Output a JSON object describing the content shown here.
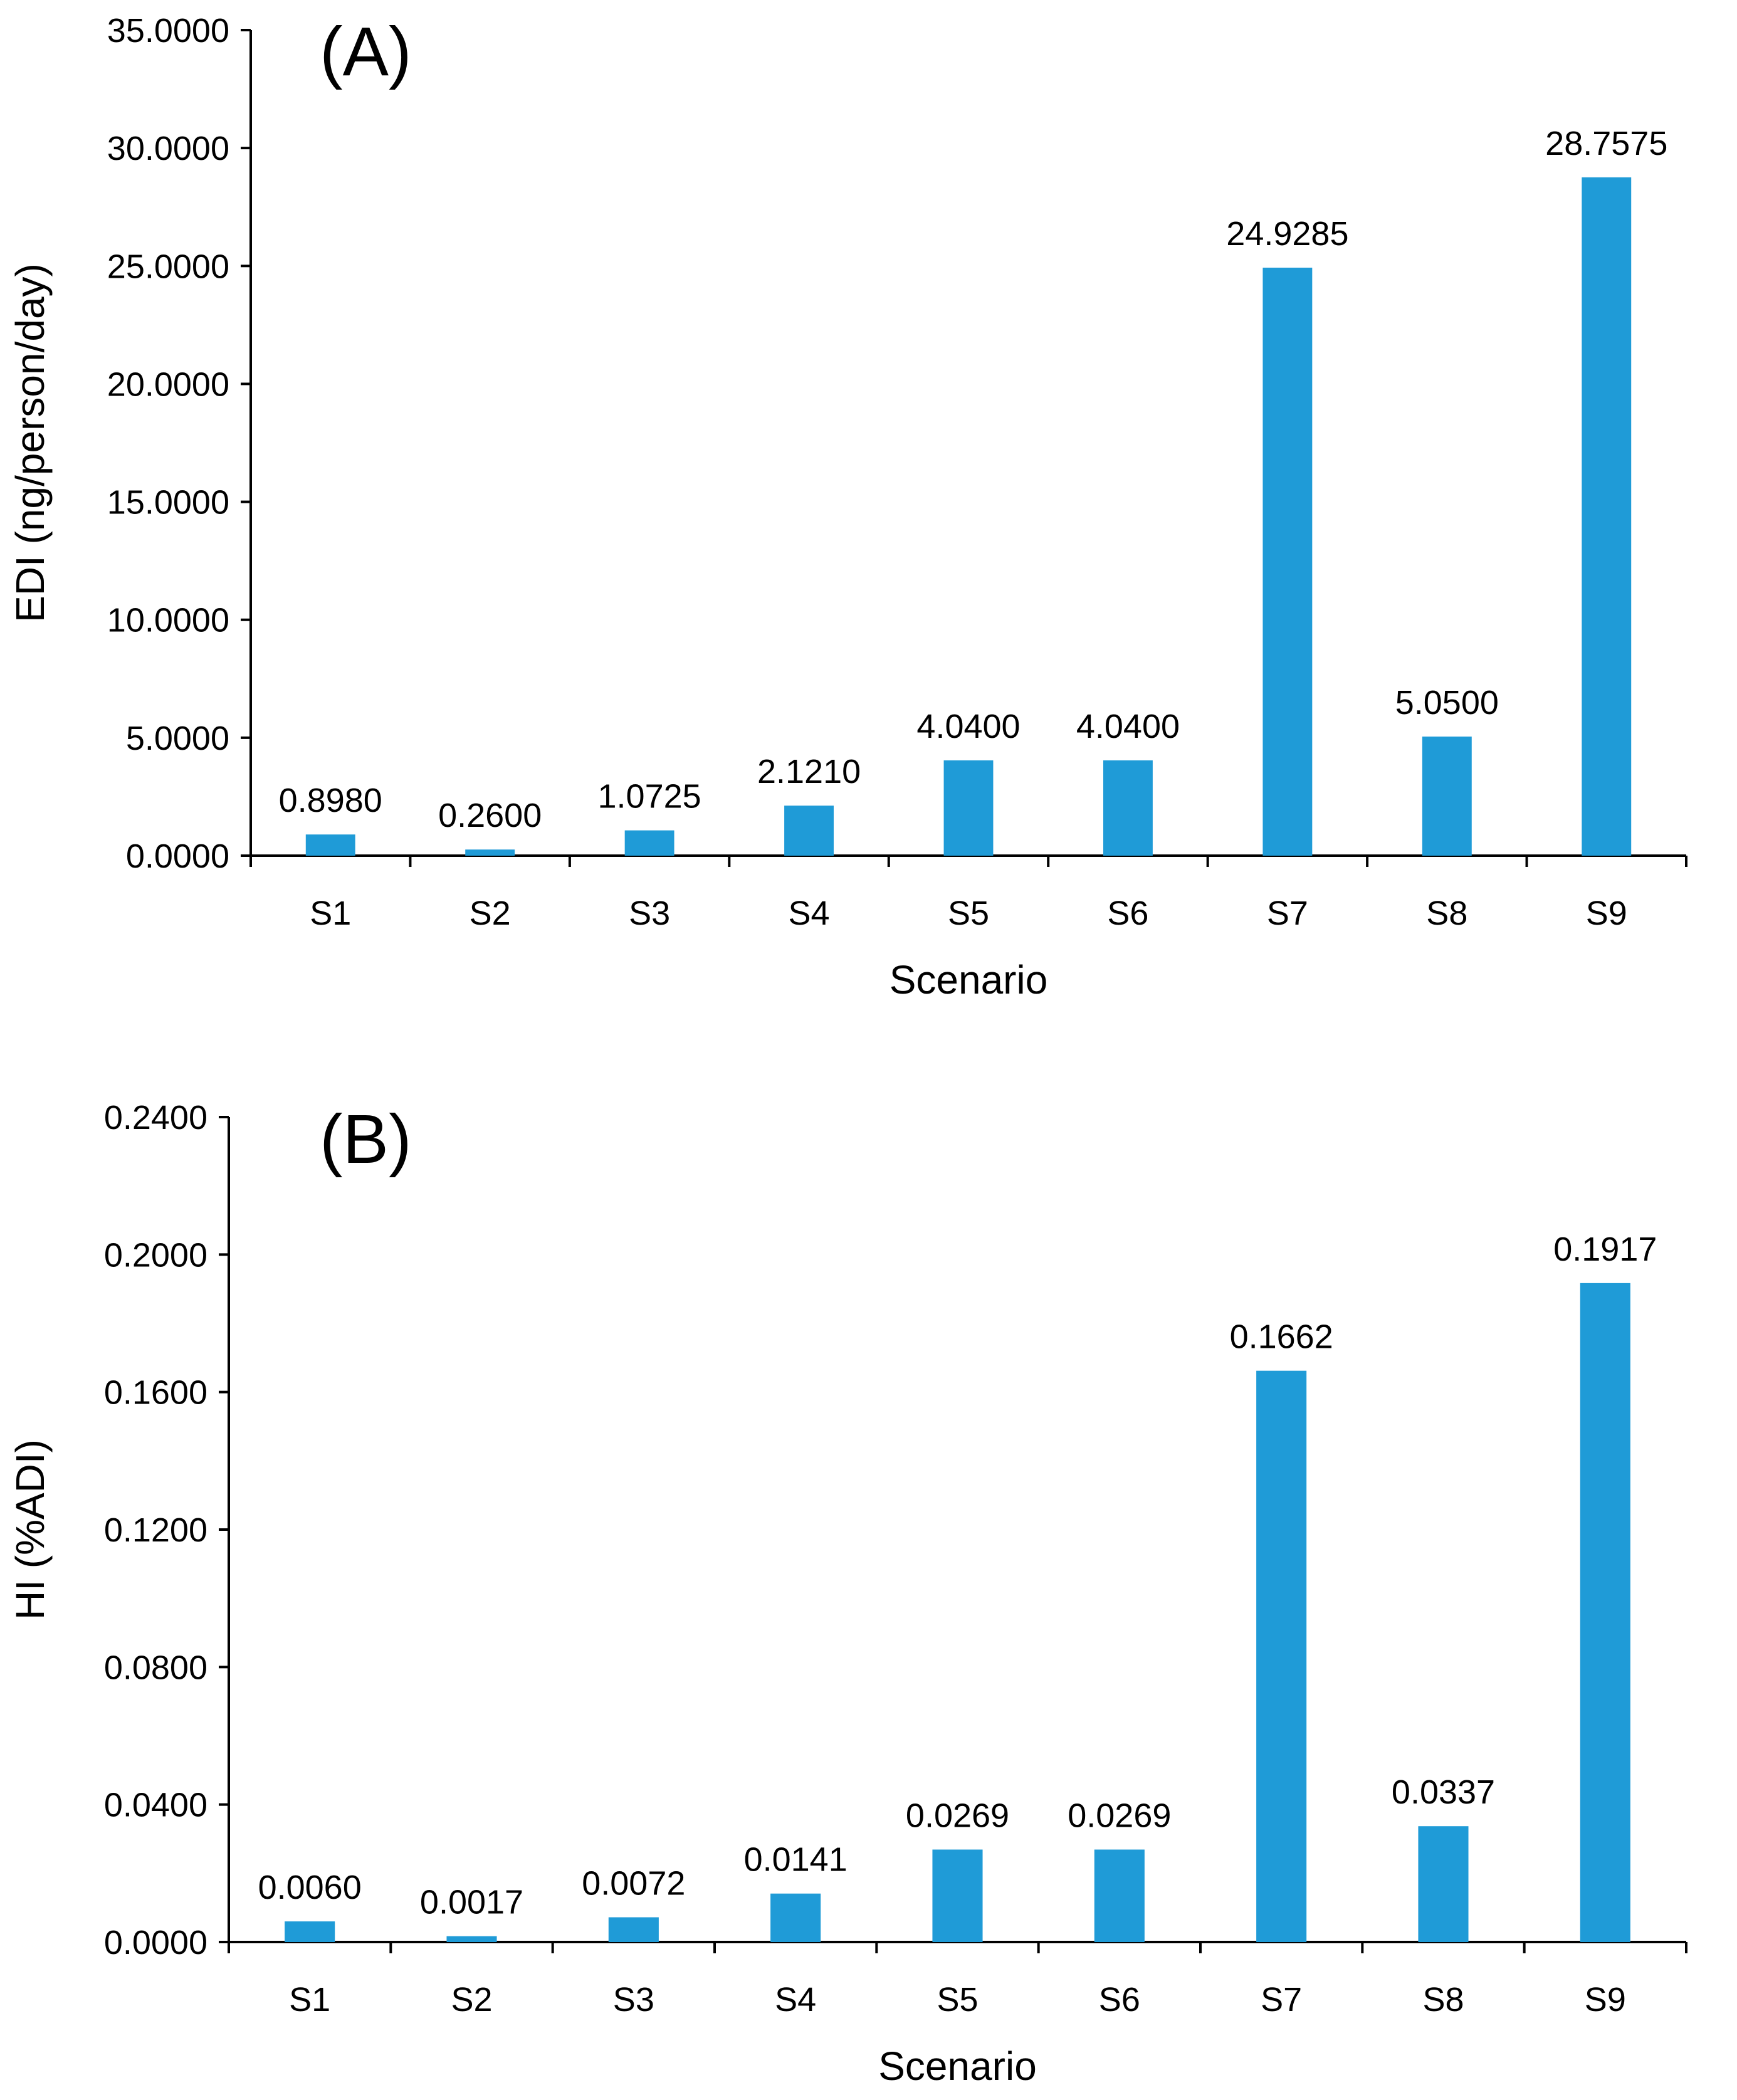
{
  "chart_data": [
    {
      "type": "bar",
      "panel_label": "(A)",
      "title": "",
      "xlabel": "Scenario",
      "ylabel": "EDI (ng/person/day)",
      "categories": [
        "S1",
        "S2",
        "S3",
        "S4",
        "S5",
        "S6",
        "S7",
        "S8",
        "S9"
      ],
      "values": [
        0.898,
        0.26,
        1.0725,
        2.121,
        4.04,
        4.04,
        24.9285,
        5.05,
        28.7575
      ],
      "value_labels": [
        "0.8980",
        "0.2600",
        "1.0725",
        "2.1210",
        "4.0400",
        "4.0400",
        "24.9285",
        "5.0500",
        "28.7575"
      ],
      "yticks": [
        0,
        5,
        10,
        15,
        20,
        25,
        30,
        35
      ],
      "ytick_labels": [
        "0.0000",
        "5.0000",
        "10.0000",
        "15.0000",
        "20.0000",
        "25.0000",
        "30.0000",
        "35.0000"
      ],
      "ylim": [
        0,
        35
      ],
      "grid": false,
      "legend": "none",
      "bar_color": "#1f9bd7"
    },
    {
      "type": "bar",
      "panel_label": "(B)",
      "title": "",
      "xlabel": "Scenario",
      "ylabel": "HI (%ADI)",
      "categories": [
        "S1",
        "S2",
        "S3",
        "S4",
        "S5",
        "S6",
        "S7",
        "S8",
        "S9"
      ],
      "values": [
        0.006,
        0.0017,
        0.0072,
        0.0141,
        0.0269,
        0.0269,
        0.1662,
        0.0337,
        0.1917
      ],
      "value_labels": [
        "0.0060",
        "0.0017",
        "0.0072",
        "0.0141",
        "0.0269",
        "0.0269",
        "0.1662",
        "0.0337",
        "0.1917"
      ],
      "yticks": [
        0,
        0.04,
        0.08,
        0.12,
        0.16,
        0.2,
        0.24
      ],
      "ytick_labels": [
        "0.0000",
        "0.0400",
        "0.0800",
        "0.1200",
        "0.1600",
        "0.2000",
        "0.2400"
      ],
      "ylim": [
        0,
        0.24
      ],
      "grid": false,
      "legend": "none",
      "bar_color": "#1f9bd7"
    }
  ]
}
